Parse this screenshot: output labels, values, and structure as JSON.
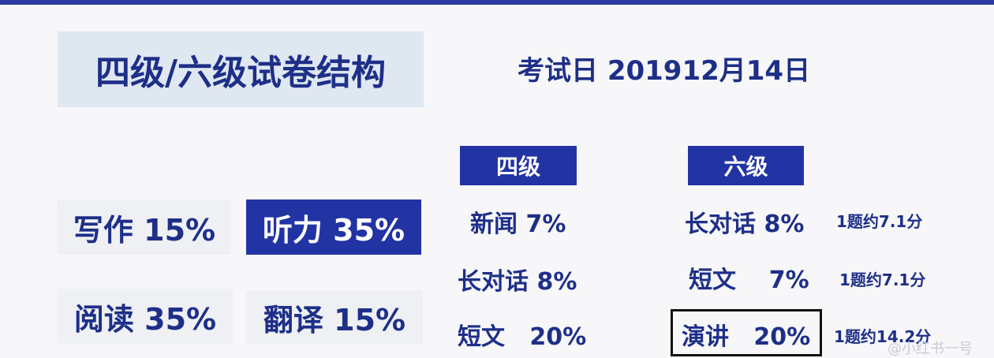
{
  "title": "四级/六级试卷结构",
  "exam_date": "考试日  201912月14日",
  "sections": {
    "writing": "写作 15%",
    "listening": "听力 35%",
    "reading": "阅读 35%",
    "translation": "翻译 15%"
  },
  "cet4": {
    "header": "四级",
    "items": [
      "新闻 7%",
      "长对话 8%",
      "短文   20%"
    ]
  },
  "cet6": {
    "header": "六级",
    "items": [
      "长对话 8%",
      "短文    7%",
      "演讲   20%"
    ],
    "notes": [
      "1题约7.1分",
      "1题约7.1分",
      "1题约14.2分"
    ]
  },
  "watermark": "@小红书一号"
}
